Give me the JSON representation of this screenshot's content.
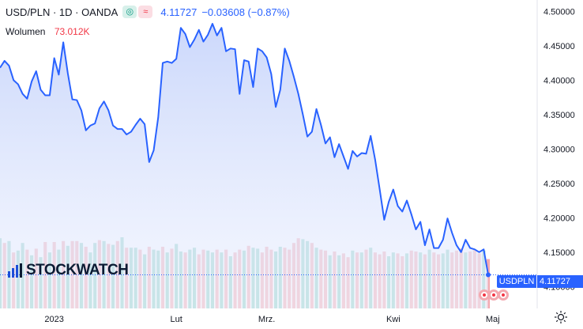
{
  "header": {
    "symbol": "USD/PLN · 1D · OANDA",
    "chip_up": "◎",
    "chip_down": "≈",
    "last_price": "4.11727",
    "change": "−0.03608 (−0.87%)",
    "volume_label": "Wolumen",
    "volume_value": "73.012K"
  },
  "watermark": "STOCKWATCH",
  "badge": {
    "symbol": "USDPLN",
    "price": "4.11727"
  },
  "icons": {
    "settings": "sun-icon",
    "flags": "us-flag-icon"
  },
  "colors": {
    "line": "#2962ff",
    "area_top": "#c9d6fb",
    "area_bottom": "#eef2fe",
    "vol_up": "#8fd1c4",
    "vol_down": "#f3a9b0",
    "axis_text": "#131722"
  },
  "chart_data": {
    "type": "line",
    "title": "",
    "xlabel": "",
    "ylabel": "",
    "ylim": [
      4.09,
      4.505
    ],
    "y_ticks": [
      "4.50000",
      "4.45000",
      "4.40000",
      "4.35000",
      "4.30000",
      "4.25000",
      "4.20000",
      "4.15000",
      "4.10000"
    ],
    "y_tick_values": [
      4.5,
      4.45,
      4.4,
      4.35,
      4.3,
      4.25,
      4.2,
      4.15,
      4.1
    ],
    "x_tick_labels": [
      "2023",
      "Lut",
      "Mrz.",
      "Kwi",
      "Maj"
    ],
    "x_tick_index": [
      12,
      39,
      59,
      87,
      109
    ],
    "series": [
      {
        "values": [
          4.418,
          4.428,
          4.421,
          4.4,
          4.394,
          4.38,
          4.373,
          4.398,
          4.413,
          4.386,
          4.378,
          4.378,
          4.432,
          4.408,
          4.455,
          4.41,
          4.372,
          4.371,
          4.356,
          4.327,
          4.334,
          4.337,
          4.359,
          4.369,
          4.356,
          4.334,
          4.329,
          4.329,
          4.321,
          4.325,
          4.335,
          4.344,
          4.336,
          4.281,
          4.298,
          4.346,
          4.425,
          4.427,
          4.425,
          4.431,
          4.476,
          4.467,
          4.448,
          4.459,
          4.473,
          4.456,
          4.466,
          4.482,
          4.465,
          4.476,
          4.442,
          4.446,
          4.445,
          4.38,
          4.429,
          4.427,
          4.39,
          4.446,
          4.442,
          4.433,
          4.409,
          4.361,
          4.386,
          4.446,
          4.428,
          4.405,
          4.38,
          4.35,
          4.318,
          4.325,
          4.358,
          4.335,
          4.308,
          4.317,
          4.288,
          4.307,
          4.289,
          4.271,
          4.297,
          4.289,
          4.294,
          4.293,
          4.319,
          4.284,
          4.241,
          4.197,
          4.223,
          4.241,
          4.217,
          4.209,
          4.225,
          4.205,
          4.183,
          4.194,
          4.16,
          4.183,
          4.156,
          4.156,
          4.168,
          4.199,
          4.178,
          4.16,
          4.15,
          4.168,
          4.156,
          4.154,
          4.15,
          4.154,
          4.117
        ]
      }
    ],
    "volume": [
      148,
      138,
      142,
      118,
      122,
      138,
      124,
      112,
      126,
      108,
      140,
      118,
      140,
      124,
      142,
      132,
      142,
      142,
      138,
      130,
      118,
      138,
      144,
      142,
      136,
      134,
      142,
      150,
      128,
      128,
      128,
      124,
      114,
      130,
      124,
      122,
      130,
      118,
      126,
      136,
      120,
      118,
      124,
      128,
      114,
      124,
      122,
      118,
      124,
      118,
      124,
      110,
      118,
      124,
      122,
      132,
      128,
      126,
      118,
      130,
      124,
      120,
      130,
      128,
      124,
      138,
      148,
      146,
      142,
      138,
      128,
      124,
      122,
      112,
      120,
      112,
      116,
      108,
      122,
      118,
      118,
      124,
      128,
      118,
      114,
      120,
      110,
      118,
      116,
      110,
      116,
      122,
      120,
      118,
      114,
      124,
      118,
      114,
      116,
      124,
      118,
      122,
      126,
      118,
      120,
      124,
      116,
      122,
      104
    ],
    "volume_up": [
      1,
      0,
      1,
      0,
      1,
      1,
      0,
      1,
      0,
      1,
      0,
      1,
      0,
      1,
      0,
      1,
      0,
      0,
      1,
      0,
      1,
      1,
      0,
      1,
      0,
      1,
      0,
      1,
      0,
      1,
      1,
      0,
      1,
      0,
      1,
      1,
      0,
      1,
      0,
      1,
      1,
      0,
      1,
      1,
      0,
      0,
      1,
      1,
      0,
      1,
      0,
      1,
      0,
      0,
      1,
      0,
      1,
      1,
      0,
      0,
      0,
      1,
      1,
      0,
      0,
      0,
      0,
      1,
      1,
      0,
      1,
      0,
      0,
      1,
      0,
      1,
      0,
      0,
      1,
      0,
      1,
      0,
      1,
      0,
      0,
      0,
      1,
      1,
      0,
      0,
      1,
      0,
      0,
      1,
      0,
      1,
      0,
      0,
      1,
      1,
      0,
      0,
      0,
      1,
      0,
      0,
      0,
      1,
      0
    ]
  }
}
